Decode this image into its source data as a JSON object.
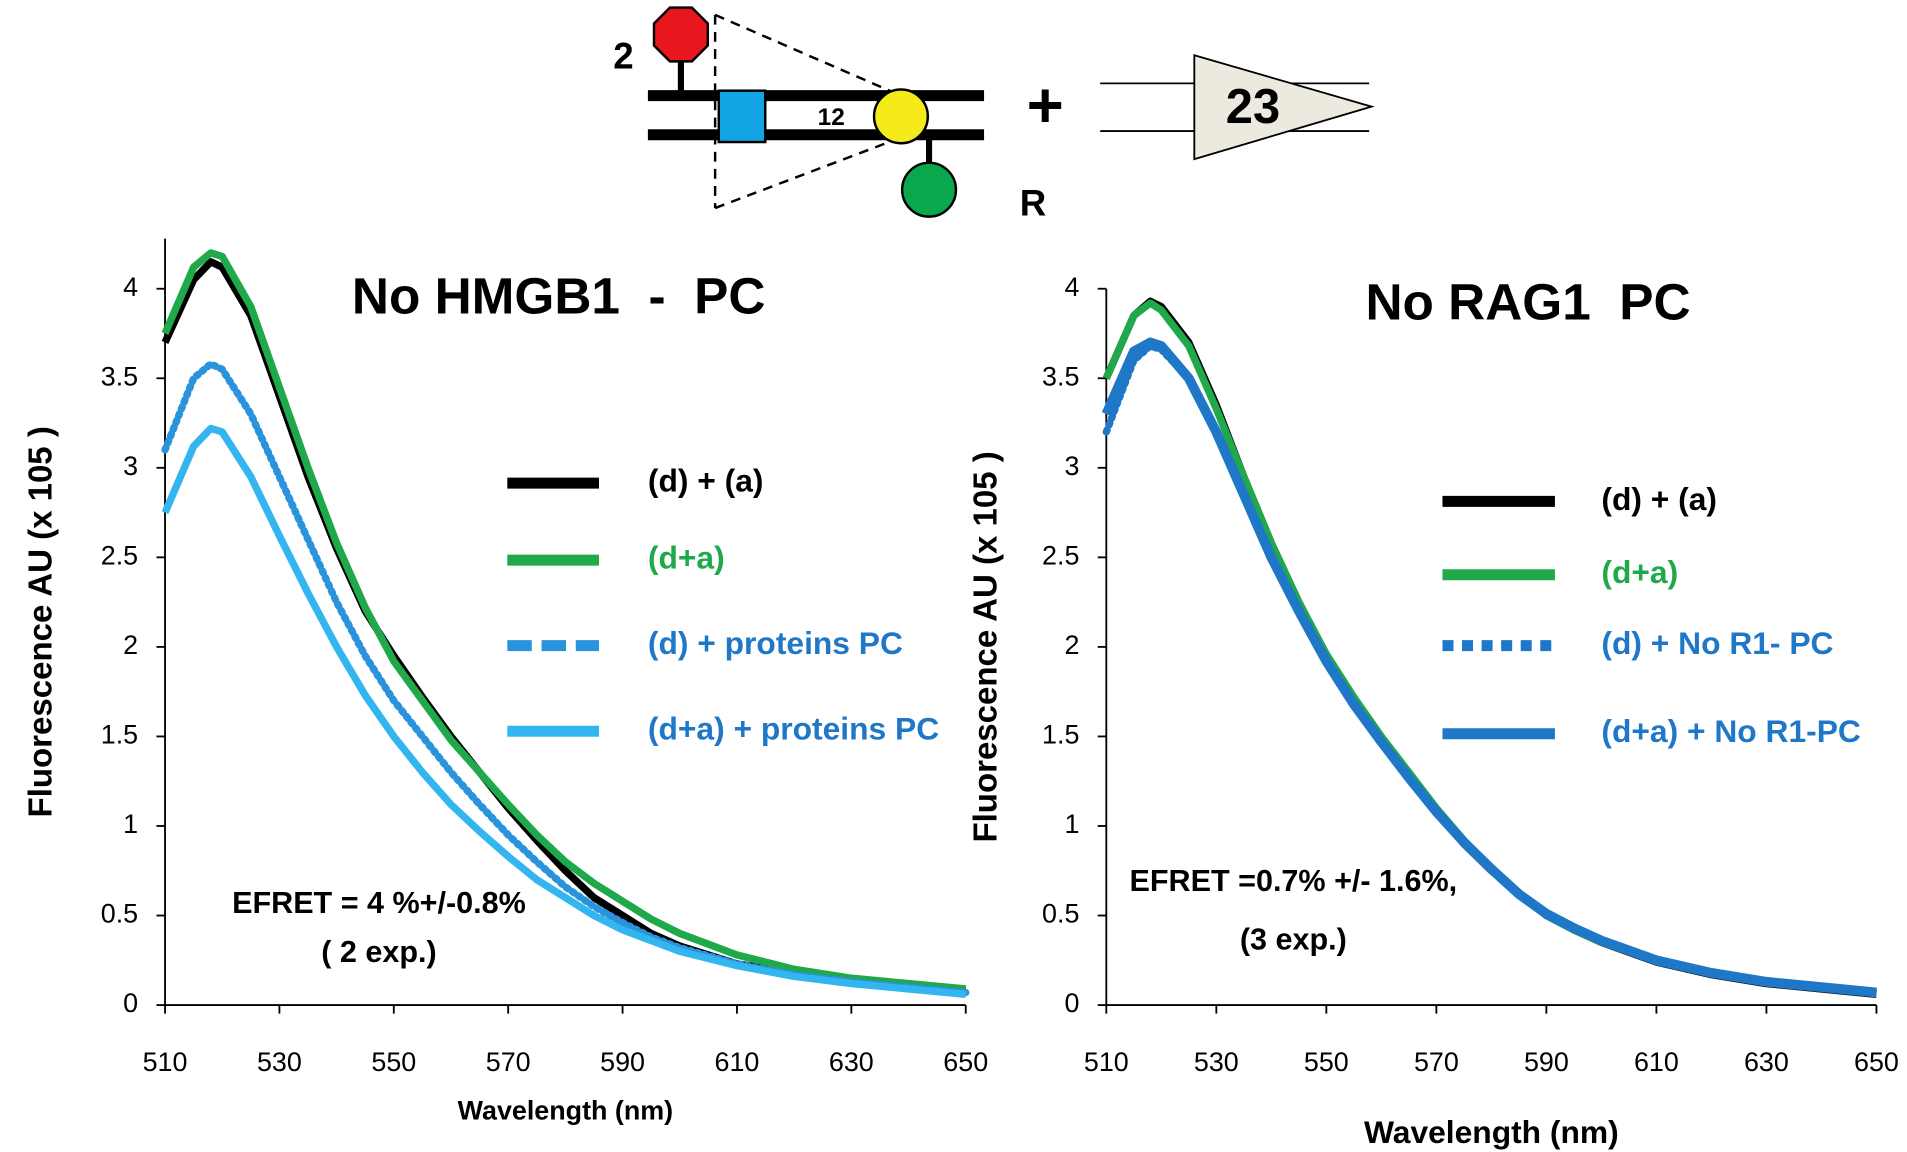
{
  "diagram": {
    "texts": [
      "2",
      "12",
      "R",
      "+",
      "23"
    ]
  },
  "chart_data": [
    {
      "type": "line",
      "title": "No HMGB1  -  PC",
      "x_label": "Wavelength (nm)",
      "y_label": "Fluorescence AU (x 105 )",
      "x": [
        510,
        515,
        518,
        520,
        525,
        530,
        535,
        540,
        545,
        550,
        555,
        560,
        565,
        570,
        575,
        580,
        585,
        590,
        595,
        600,
        610,
        620,
        630,
        640,
        650
      ],
      "xlim": [
        510,
        650
      ],
      "xticks": [
        510,
        530,
        550,
        570,
        590,
        610,
        630,
        650
      ],
      "ylim": [
        0,
        4.28
      ],
      "yticks": [
        0,
        0.5,
        1,
        1.5,
        2,
        2.5,
        3,
        3.5,
        4
      ],
      "annotations": [
        "EFRET = 4 %+/-0.8%",
        "( 2 exp.)"
      ],
      "series": [
        {
          "name": "(d) + (a)",
          "color": "#000000",
          "style": "solid",
          "values": [
            3.7,
            4.05,
            4.15,
            4.12,
            3.85,
            3.4,
            2.95,
            2.55,
            2.2,
            1.95,
            1.72,
            1.5,
            1.3,
            1.1,
            0.92,
            0.75,
            0.6,
            0.5,
            0.4,
            0.33,
            0.23,
            0.18,
            0.14,
            0.11,
            0.08
          ]
        },
        {
          "name": "(d+a)",
          "color": "#1fa94a",
          "style": "solid",
          "values": [
            3.75,
            4.12,
            4.2,
            4.18,
            3.9,
            3.45,
            3.0,
            2.58,
            2.22,
            1.92,
            1.7,
            1.48,
            1.3,
            1.12,
            0.95,
            0.8,
            0.68,
            0.58,
            0.48,
            0.4,
            0.28,
            0.2,
            0.15,
            0.12,
            0.09
          ]
        },
        {
          "name": "(d) + proteins PC",
          "color": "#2a93dc",
          "style": "dotted",
          "values": [
            3.1,
            3.5,
            3.58,
            3.55,
            3.3,
            2.95,
            2.6,
            2.25,
            1.95,
            1.7,
            1.5,
            1.3,
            1.12,
            0.95,
            0.8,
            0.66,
            0.55,
            0.46,
            0.38,
            0.32,
            0.23,
            0.17,
            0.13,
            0.1,
            0.07
          ]
        },
        {
          "name": "(d+a) + proteins PC",
          "color": "#33b5ef",
          "style": "solid",
          "values": [
            2.75,
            3.12,
            3.22,
            3.2,
            2.95,
            2.62,
            2.3,
            2.0,
            1.73,
            1.5,
            1.3,
            1.12,
            0.97,
            0.83,
            0.7,
            0.6,
            0.5,
            0.42,
            0.36,
            0.3,
            0.22,
            0.16,
            0.12,
            0.09,
            0.06
          ]
        }
      ]
    },
    {
      "type": "line",
      "title": "No RAG1  PC",
      "x_label": "Wavelength (nm)",
      "y_label": "Fluorescence AU (x 105 )",
      "x": [
        510,
        515,
        518,
        520,
        525,
        530,
        535,
        540,
        545,
        550,
        555,
        560,
        565,
        570,
        575,
        580,
        585,
        590,
        595,
        600,
        610,
        620,
        630,
        640,
        650
      ],
      "xlim": [
        510,
        650
      ],
      "xticks": [
        510,
        530,
        550,
        570,
        590,
        610,
        630,
        650
      ],
      "ylim": [
        0,
        4
      ],
      "yticks": [
        0,
        0.5,
        1,
        1.5,
        2,
        2.5,
        3,
        3.5,
        4
      ],
      "annotations": [
        "EFRET =0.7% +/- 1.6%,",
        "(3 exp.)"
      ],
      "series": [
        {
          "name": "(d) + (a)",
          "color": "#000000",
          "style": "solid",
          "values": [
            3.5,
            3.85,
            3.93,
            3.9,
            3.7,
            3.35,
            2.95,
            2.58,
            2.25,
            1.95,
            1.7,
            1.48,
            1.27,
            1.08,
            0.9,
            0.75,
            0.62,
            0.5,
            0.42,
            0.35,
            0.24,
            0.17,
            0.12,
            0.09,
            0.06
          ]
        },
        {
          "name": "(d+a)",
          "color": "#1fa94a",
          "style": "solid",
          "values": [
            3.5,
            3.85,
            3.92,
            3.88,
            3.68,
            3.33,
            2.95,
            2.58,
            2.25,
            1.96,
            1.72,
            1.5,
            1.3,
            1.1,
            0.92,
            0.76,
            0.62,
            0.5,
            0.42,
            0.35,
            0.25,
            0.18,
            0.13,
            0.1,
            0.07
          ]
        },
        {
          "name": "(d) + No R1- PC",
          "color": "#1f77c8",
          "style": "dotted",
          "values": [
            3.2,
            3.6,
            3.68,
            3.66,
            3.5,
            3.2,
            2.85,
            2.5,
            2.2,
            1.92,
            1.68,
            1.47,
            1.27,
            1.08,
            0.91,
            0.76,
            0.62,
            0.51,
            0.43,
            0.36,
            0.25,
            0.18,
            0.13,
            0.1,
            0.07
          ]
        },
        {
          "name": "(d+a) + No R1-PC",
          "color": "#1f77c8",
          "style": "solid",
          "values": [
            3.3,
            3.65,
            3.7,
            3.68,
            3.5,
            3.2,
            2.85,
            2.5,
            2.2,
            1.92,
            1.68,
            1.47,
            1.27,
            1.08,
            0.91,
            0.76,
            0.62,
            0.51,
            0.43,
            0.36,
            0.25,
            0.18,
            0.13,
            0.1,
            0.07
          ]
        }
      ]
    }
  ]
}
